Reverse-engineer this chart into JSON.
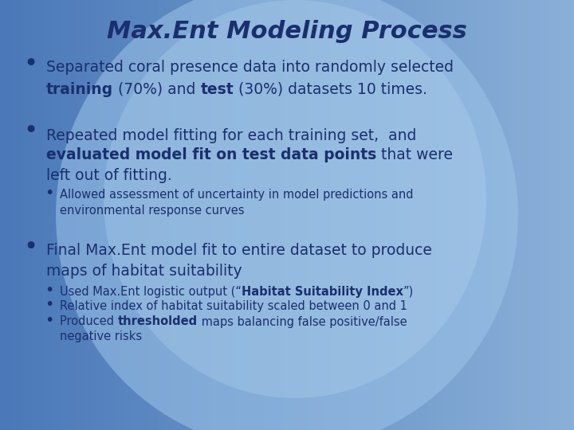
{
  "title": "Max.Ent Modeling Process",
  "title_color": "#1a2f6e",
  "title_fontsize": 22,
  "text_color": "#1a2f6e",
  "main_fontsize": 13.5,
  "sub_fontsize": 10.5,
  "bg_left": "#4878b8",
  "bg_right": "#8ab0d8",
  "oval_color": "#8ab8e0",
  "bullet_large": 22,
  "bullet_small": 14,
  "bullet1_line1": "Separated coral presence data into randomly selected",
  "bullet1_line2_pre": " (70%) and ",
  "bullet1_line2_bold1": "training",
  "bullet1_line2_bold2": "test",
  "bullet1_line2_end": " (30%) datasets 10 times.",
  "bullet2_line1": "Repeated model fitting for each training set,  and",
  "bullet2_line2_bold": "evaluated model fit on test data points",
  "bullet2_line2_end": " that were",
  "bullet2_line3": "left out of fitting.",
  "sub2_line1": "Allowed assessment of uncertainty in model predictions and",
  "sub2_line2": "environmental response curves",
  "bullet3_line1": "Final Max.Ent model fit to entire dataset to produce",
  "bullet3_line2": "maps of habitat suitability",
  "sub3a_pre": "Used Max.Ent logistic output (“",
  "sub3a_bold": "Habitat Suitability Index",
  "sub3a_end": "”)",
  "sub3b": "Relative index of habitat suitability scaled between 0 and 1",
  "sub3c_pre": "Produced ",
  "sub3c_bold": "thresholded",
  "sub3c_mid": " maps balancing false positive/false",
  "sub3c_line2": "negative risks"
}
